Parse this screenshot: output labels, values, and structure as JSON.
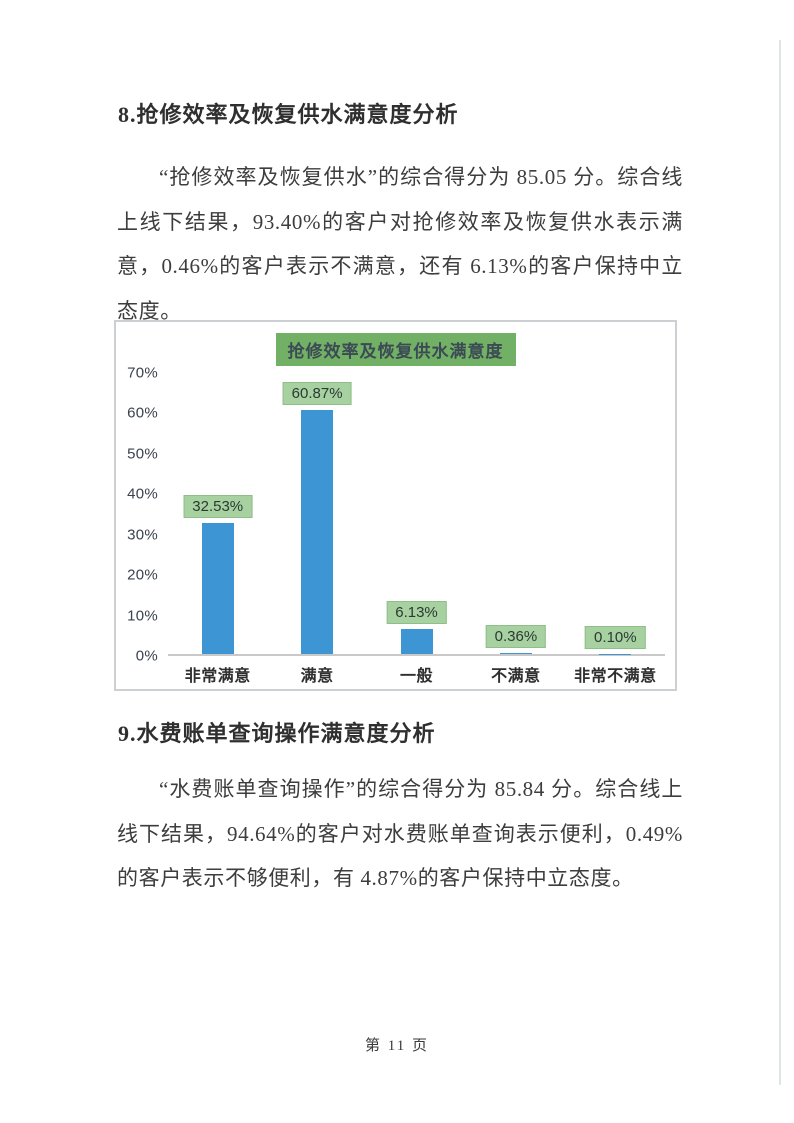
{
  "sections": {
    "s8": {
      "heading": "8.抢修效率及恢复供水满意度分析",
      "paragraph": "“抢修效率及恢复供水”的综合得分为 85.05 分。综合线上线下结果，93.40%的客户对抢修效率及恢复供水表示满意，0.46%的客户表示不满意，还有 6.13%的客户保持中立态度。"
    },
    "s9": {
      "heading": "9.水费账单查询操作满意度分析",
      "paragraph": "“水费账单查询操作”的综合得分为 85.84 分。综合线上线下结果，94.64%的客户对水费账单查询表示便利，0.49%的客户表示不够便利，有 4.87%的客户保持中立态度。"
    }
  },
  "chart_data": {
    "type": "bar",
    "title": "抢修效率及恢复供水满意度",
    "categories": [
      "非常满意",
      "满意",
      "一般",
      "不满意",
      "非常不满意"
    ],
    "values": [
      32.53,
      60.87,
      6.13,
      0.36,
      0.1
    ],
    "data_labels": [
      "32.53%",
      "60.87%",
      "6.13%",
      "0.36%",
      "0.10%"
    ],
    "y_ticks": [
      "0%",
      "10%",
      "20%",
      "30%",
      "40%",
      "50%",
      "60%",
      "70%"
    ],
    "ylim": [
      0,
      70
    ],
    "grid": false,
    "legend": null,
    "layout": {
      "xlabel": "",
      "ylabel": "",
      "legend_position": "none"
    },
    "colors": {
      "bar": "#3E95D3",
      "data_label_bg": "#A7D1A1",
      "data_label_border": "#8FBE89",
      "title_bg": "#72B065",
      "title_text": "#3B4A54",
      "axis_line": "#C9C9C9",
      "frame_border": "#CCD0D2"
    }
  },
  "footer": {
    "page_label": "第 11 页"
  }
}
